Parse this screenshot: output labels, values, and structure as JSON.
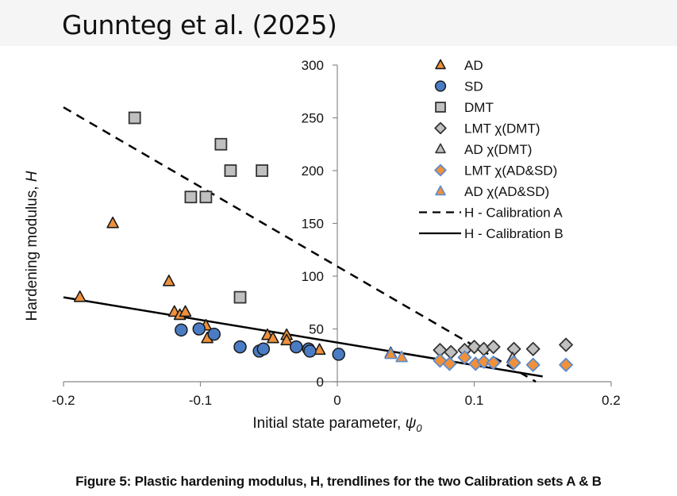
{
  "header": {
    "title": "Gunnteg et al. (2025)"
  },
  "caption": "Figure 5: Plastic hardening modulus, H, trendlines for the two Calibration sets A & B",
  "chart_data": {
    "type": "scatter",
    "title": "",
    "xlabel": "Initial state parameter, ψ",
    "xlabel_subscript": "0",
    "ylabel": "Hardening modulus, H",
    "xlim": [
      -0.2,
      0.2
    ],
    "ylim": [
      0,
      300
    ],
    "xticks": [
      -0.2,
      -0.1,
      0,
      0.1,
      0.2
    ],
    "xtick_labels": [
      "-0.2",
      "-0.1",
      "0",
      "0.1",
      "0.2"
    ],
    "yticks": [
      0,
      50,
      100,
      150,
      200,
      250,
      300
    ],
    "ytick_labels": [
      "0",
      "50",
      "100",
      "150",
      "200",
      "250",
      "300"
    ],
    "grid": false,
    "legend_position": "top-right",
    "series": [
      {
        "name": "AD",
        "marker": "triangle",
        "fill": "#f0913a",
        "stroke": "#1a1a1a",
        "points": [
          [
            -0.188,
            80
          ],
          [
            -0.164,
            150
          ],
          [
            -0.123,
            95
          ],
          [
            -0.119,
            66
          ],
          [
            -0.115,
            63
          ],
          [
            -0.111,
            66
          ],
          [
            -0.096,
            53
          ],
          [
            -0.095,
            41
          ],
          [
            -0.051,
            44
          ],
          [
            -0.047,
            41
          ],
          [
            -0.037,
            44
          ],
          [
            -0.037,
            39
          ],
          [
            -0.013,
            30
          ]
        ]
      },
      {
        "name": "SD",
        "marker": "circle",
        "fill": "#4a7cc4",
        "stroke": "#1a1a1a",
        "points": [
          [
            -0.114,
            49
          ],
          [
            -0.101,
            50
          ],
          [
            -0.09,
            45
          ],
          [
            -0.071,
            33
          ],
          [
            -0.057,
            29
          ],
          [
            -0.054,
            31
          ],
          [
            -0.03,
            33
          ],
          [
            -0.021,
            31
          ],
          [
            -0.02,
            29
          ],
          [
            0.001,
            26
          ]
        ]
      },
      {
        "name": "DMT",
        "marker": "square",
        "fill": "#c0c0c0",
        "stroke": "#333333",
        "points": [
          [
            -0.148,
            250
          ],
          [
            -0.085,
            225
          ],
          [
            -0.078,
            200
          ],
          [
            -0.055,
            200
          ],
          [
            -0.107,
            175
          ],
          [
            -0.096,
            175
          ],
          [
            -0.071,
            80
          ]
        ]
      },
      {
        "name": "LMT χ(DMT)",
        "marker": "diamond",
        "fill": "#c0c0c0",
        "stroke": "#333333",
        "points": [
          [
            0.075,
            30
          ],
          [
            0.083,
            28
          ],
          [
            0.093,
            30
          ],
          [
            0.1,
            33
          ],
          [
            0.107,
            31
          ],
          [
            0.114,
            33
          ],
          [
            0.129,
            31
          ],
          [
            0.143,
            31
          ],
          [
            0.167,
            35
          ]
        ]
      },
      {
        "name": "AD χ(DMT)",
        "marker": "triangle",
        "fill": "#c0c0c0",
        "stroke": "#333333",
        "points": [
          [
            0.039,
            27
          ],
          [
            0.128,
            22
          ]
        ]
      },
      {
        "name": "LMT χ(AD&SD)",
        "marker": "diamond",
        "fill": "#f0913a",
        "stroke": "#5b8bd0",
        "points": [
          [
            0.075,
            20
          ],
          [
            0.082,
            17
          ],
          [
            0.093,
            23
          ],
          [
            0.101,
            17
          ],
          [
            0.107,
            19
          ],
          [
            0.114,
            18
          ],
          [
            0.129,
            18
          ],
          [
            0.143,
            16
          ],
          [
            0.167,
            16
          ]
        ]
      },
      {
        "name": "AD χ(AD&SD)",
        "marker": "triangle",
        "fill": "#f0913a",
        "stroke": "#5b8bd0",
        "points": [
          [
            0.039,
            26
          ],
          [
            0.047,
            23
          ]
        ]
      }
    ],
    "lines": [
      {
        "name": "H - Calibration A",
        "style": "dashed",
        "color": "#000000",
        "points": [
          [
            -0.2,
            260
          ],
          [
            0.145,
            0
          ]
        ]
      },
      {
        "name": "H - Calibration B",
        "style": "solid",
        "color": "#000000",
        "points": [
          [
            -0.2,
            80
          ],
          [
            0.15,
            5
          ]
        ]
      }
    ]
  }
}
